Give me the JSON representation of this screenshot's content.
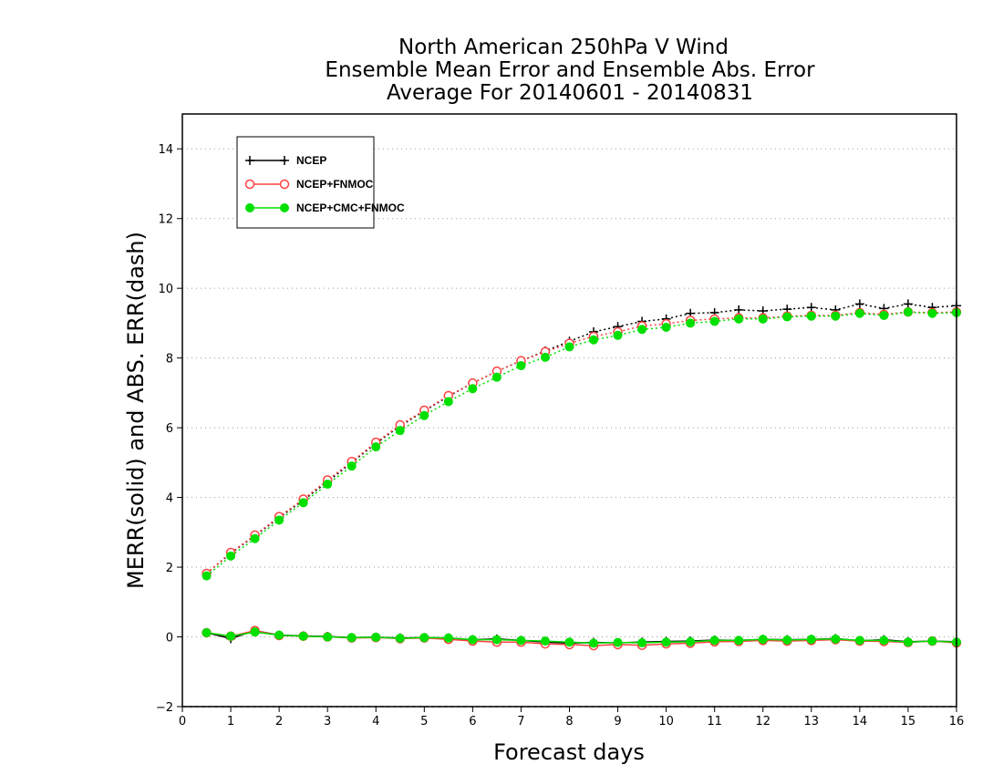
{
  "chart_data": {
    "type": "line",
    "title_lines": [
      "North American 250hPa V Wind",
      "Ensemble Mean Error and Ensemble Abs. Error",
      "Average For 20140601 - 20140831"
    ],
    "xlabel": "Forecast days",
    "ylabel": "MERR(solid) and ABS. ERR(dash)",
    "xlim": [
      0,
      16
    ],
    "ylim": [
      -2,
      15
    ],
    "x_ticks": [
      0,
      1,
      2,
      3,
      4,
      5,
      6,
      7,
      8,
      9,
      10,
      11,
      12,
      13,
      14,
      15,
      16
    ],
    "y_ticks": [
      -2,
      0,
      2,
      4,
      6,
      8,
      10,
      12,
      14
    ],
    "grid": "horizontal dotted",
    "legend_position": "top-left",
    "x": [
      0.5,
      1.0,
      1.5,
      2.0,
      2.5,
      3.0,
      3.5,
      4.0,
      4.5,
      5.0,
      5.5,
      6.0,
      6.5,
      7.0,
      7.5,
      8.0,
      8.5,
      9.0,
      9.5,
      10.0,
      10.5,
      11.0,
      11.5,
      12.0,
      12.5,
      13.0,
      13.5,
      14.0,
      14.5,
      15.0,
      15.5,
      16.0
    ],
    "series": [
      {
        "name": "NCEP",
        "color": "#000000",
        "marker": "plus",
        "merr": [
          0.12,
          -0.05,
          0.18,
          0.05,
          0.03,
          0.01,
          -0.02,
          -0.01,
          -0.03,
          -0.02,
          -0.03,
          -0.08,
          -0.06,
          -0.1,
          -0.15,
          -0.18,
          -0.16,
          -0.17,
          -0.15,
          -0.13,
          -0.12,
          -0.09,
          -0.1,
          -0.07,
          -0.08,
          -0.07,
          -0.05,
          -0.11,
          -0.08,
          -0.14,
          -0.12,
          -0.14
        ],
        "abserr": [
          1.82,
          2.4,
          2.9,
          3.42,
          3.92,
          4.45,
          5.0,
          5.55,
          6.05,
          6.48,
          6.9,
          7.28,
          7.62,
          7.92,
          8.2,
          8.48,
          8.75,
          8.9,
          9.05,
          9.12,
          9.28,
          9.3,
          9.38,
          9.35,
          9.4,
          9.45,
          9.38,
          9.55,
          9.42,
          9.55,
          9.45,
          9.5
        ]
      },
      {
        "name": "NCEP+FNMOC",
        "color": "#ff4040",
        "marker": "circle",
        "merr": [
          0.12,
          0.02,
          0.18,
          0.04,
          0.02,
          0.0,
          -0.03,
          -0.02,
          -0.05,
          -0.03,
          -0.07,
          -0.12,
          -0.15,
          -0.15,
          -0.2,
          -0.22,
          -0.25,
          -0.22,
          -0.24,
          -0.2,
          -0.18,
          -0.14,
          -0.13,
          -0.1,
          -0.12,
          -0.1,
          -0.08,
          -0.12,
          -0.13,
          -0.16,
          -0.12,
          -0.17
        ],
        "abserr": [
          1.82,
          2.42,
          2.92,
          3.45,
          3.95,
          4.5,
          5.03,
          5.58,
          6.08,
          6.5,
          6.92,
          7.28,
          7.62,
          7.92,
          8.18,
          8.42,
          8.62,
          8.75,
          8.92,
          8.98,
          9.08,
          9.12,
          9.15,
          9.15,
          9.2,
          9.22,
          9.22,
          9.3,
          9.25,
          9.32,
          9.3,
          9.32
        ]
      },
      {
        "name": "NCEP+CMC+FNMOC",
        "color": "#00e000",
        "marker": "filled-circle",
        "merr": [
          0.12,
          0.02,
          0.14,
          0.05,
          0.02,
          0.0,
          -0.02,
          -0.01,
          -0.04,
          -0.02,
          -0.03,
          -0.08,
          -0.08,
          -0.1,
          -0.12,
          -0.15,
          -0.18,
          -0.16,
          -0.17,
          -0.15,
          -0.14,
          -0.1,
          -0.1,
          -0.07,
          -0.09,
          -0.07,
          -0.06,
          -0.1,
          -0.1,
          -0.15,
          -0.12,
          -0.15
        ],
        "abserr": [
          1.75,
          2.32,
          2.82,
          3.35,
          3.85,
          4.38,
          4.9,
          5.45,
          5.92,
          6.35,
          6.75,
          7.12,
          7.45,
          7.78,
          8.02,
          8.32,
          8.52,
          8.65,
          8.82,
          8.88,
          9.0,
          9.05,
          9.12,
          9.12,
          9.18,
          9.2,
          9.2,
          9.28,
          9.22,
          9.32,
          9.28,
          9.3
        ]
      }
    ]
  }
}
